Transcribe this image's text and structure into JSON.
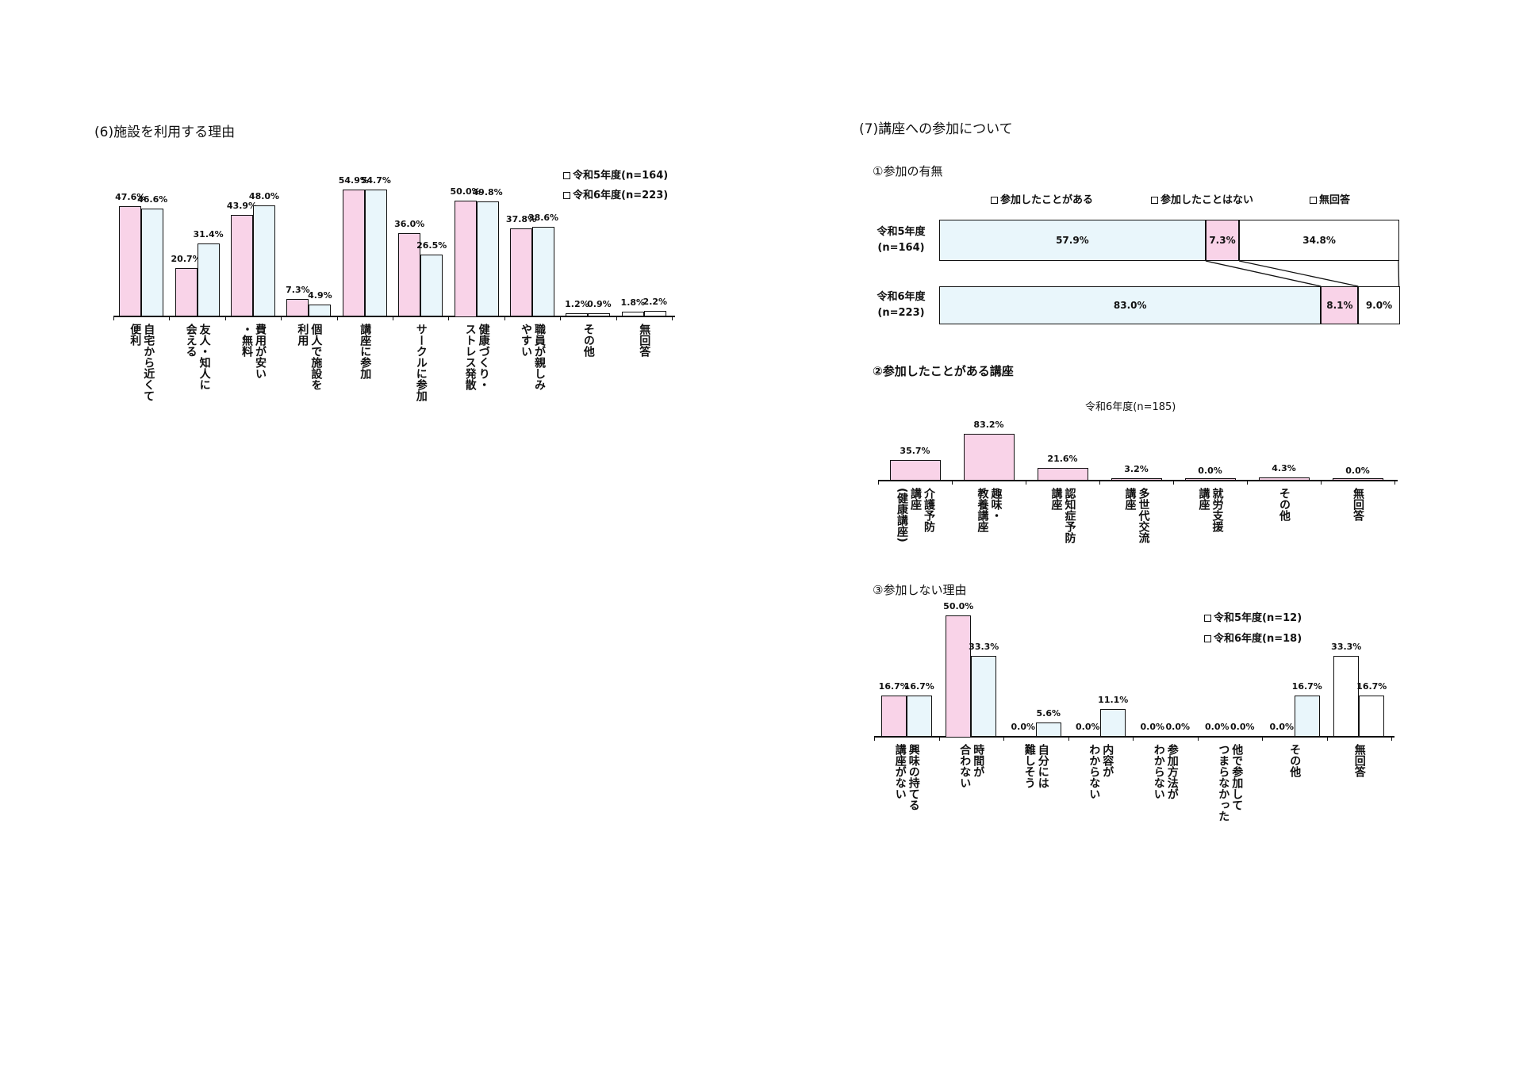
{
  "colors": {
    "r5": "#f9d3e8",
    "r6": "#e9f6fb",
    "none": "#ffffff"
  },
  "chart_data": [
    {
      "id": "c6",
      "type": "bar",
      "title": "(6)施設を利用する理由",
      "categories": [
        "自宅から近くて\n便利",
        "友人・知人に\n会える",
        "費用が安い\n・無料",
        "個人で施設を\n利用",
        "講座に参加",
        "サークルに参加",
        "健康づくり・\nストレス発散",
        "職員が親しみ\nやすい",
        "その他",
        "無回答"
      ],
      "series": [
        {
          "name": "令和5年度(n=164)",
          "values": [
            47.6,
            20.7,
            43.9,
            7.3,
            54.9,
            36.0,
            50.0,
            37.8,
            1.2,
            1.8
          ]
        },
        {
          "name": "令和6年度(n=223)",
          "values": [
            46.6,
            31.4,
            48.0,
            4.9,
            54.7,
            26.5,
            49.8,
            38.6,
            0.9,
            2.2
          ]
        }
      ],
      "white_categories": [
        "その他",
        "無回答"
      ],
      "legend": "top-right",
      "unit": "%"
    },
    {
      "id": "c7a",
      "type": "bar",
      "orientation": "horizontal-stacked",
      "title": "(7)講座への参加について",
      "subtitle": "①参加の有無",
      "categories": [
        "令和5年度\n(n=164)",
        "令和6年度\n(n=223)"
      ],
      "series": [
        {
          "name": "参加したことがある",
          "values": [
            57.9,
            83.0
          ]
        },
        {
          "name": "参加したことはない",
          "values": [
            7.3,
            8.1
          ]
        },
        {
          "name": "無回答",
          "values": [
            34.8,
            9.0
          ]
        }
      ],
      "legend": "top",
      "unit": "%"
    },
    {
      "id": "c7b",
      "type": "bar",
      "title": "②参加したことがある講座",
      "subtitle": "令和6年度(n=185)",
      "categories": [
        "介護予防\n講座\n(健康講座)",
        "趣味・\n教養講座",
        "認知症予防\n講座",
        "多世代交流\n講座",
        "就労支援\n講座",
        "その他",
        "無回答"
      ],
      "values": [
        35.7,
        83.2,
        21.6,
        3.2,
        0.0,
        4.3,
        0.0
      ],
      "unit": "%"
    },
    {
      "id": "c7c",
      "type": "bar",
      "title": "③参加しない理由",
      "categories": [
        "興味の持てる\n講座がない",
        "時間が\n合わない",
        "自分には\n難しそう",
        "内容が\nわからない",
        "参加方法が\nわからない",
        "他で参加して\nつまらなかった",
        "その他",
        "無回答"
      ],
      "series": [
        {
          "name": "令和5年度(n=12)",
          "values": [
            16.7,
            50.0,
            0.0,
            0.0,
            0.0,
            0.0,
            0.0,
            33.3
          ]
        },
        {
          "name": "令和6年度(n=18)",
          "values": [
            16.7,
            33.3,
            5.6,
            11.1,
            0.0,
            0.0,
            16.7,
            16.7
          ]
        }
      ],
      "white_categories": [
        "無回答"
      ],
      "legend": "top-right",
      "unit": "%"
    }
  ]
}
